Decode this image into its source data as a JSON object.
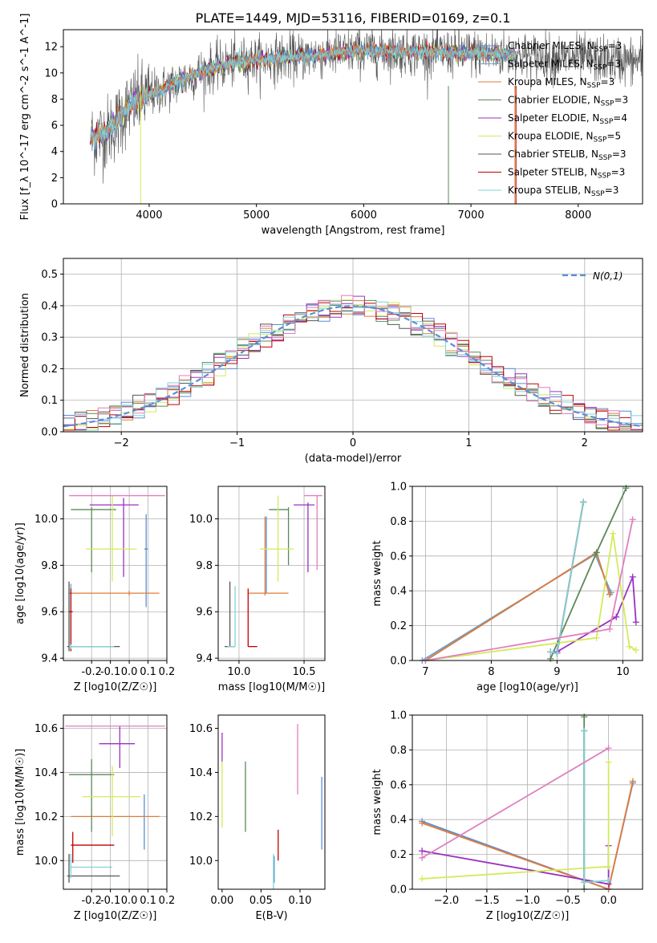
{
  "figure": {
    "title": "PLATE=1449, MJD=53116, FIBERID=0169, z=0.1"
  },
  "models": [
    {
      "name": "Chabrier MILES",
      "nssp": "3",
      "color": "#5b8ed6"
    },
    {
      "name": "Salpeter MILES",
      "nssp": "3",
      "color": "#6aa0d0"
    },
    {
      "name": "Kroupa MILES",
      "nssp": "3",
      "color": "#e07b39"
    },
    {
      "name": "Chabrier ELODIE",
      "nssp": "3",
      "color": "#5a8a5a"
    },
    {
      "name": "Salpeter ELODIE",
      "nssp": "4",
      "color": "#9b30c0"
    },
    {
      "name": "Kroupa ELODIE",
      "nssp": "5",
      "color": "#d4ea5a"
    },
    {
      "name": "Chabrier STELIB",
      "nssp": "3",
      "color": "#555555"
    },
    {
      "name": "Salpeter STELIB",
      "nssp": "3",
      "color": "#c00000"
    },
    {
      "name": "Kroupa STELIB",
      "nssp": "3",
      "color": "#7fd4d8"
    }
  ],
  "chart_data": [
    {
      "id": "spectrum",
      "type": "line",
      "xlabel": "wavelength [Angstrom, rest frame]",
      "ylabel": "Flux [f_λ 10^-17 erg cm^-2 s^-1 A^-1]",
      "xlim": [
        3200,
        8600
      ],
      "ylim": [
        0,
        13.3
      ],
      "xticks": [
        4000,
        5000,
        6000,
        7000,
        8000
      ],
      "yticks": [
        0,
        2,
        4,
        6,
        8,
        10,
        12
      ],
      "legend_position": "right",
      "continuum": {
        "x": [
          3450,
          3600,
          3700,
          3800,
          3900,
          4000,
          4200,
          4400,
          4600,
          4800,
          5000,
          5500,
          6000,
          6500,
          7000,
          7400,
          7500,
          8000,
          8500
        ],
        "y": [
          5.0,
          5.4,
          6.2,
          7.3,
          7.9,
          8.3,
          9.0,
          9.8,
          10.4,
          10.8,
          11.0,
          11.3,
          11.7,
          11.6,
          11.5,
          11.4,
          11.3,
          11.1,
          10.9
        ]
      }
    },
    {
      "id": "residuals",
      "type": "histogram",
      "xlabel": "(data-model)/error",
      "ylabel": "Normed distribution",
      "xlim": [
        -2.5,
        2.5
      ],
      "ylim": [
        0,
        0.55
      ],
      "xticks": [
        -2,
        -1,
        0,
        1,
        2
      ],
      "yticks": [
        0.0,
        0.1,
        0.2,
        0.3,
        0.4,
        0.5
      ],
      "grid": true,
      "legend_position": "top-right",
      "reference": {
        "label": "N(0,1)",
        "mean": 0,
        "sigma": 1
      }
    },
    {
      "id": "age_vs_z",
      "type": "errorbar",
      "xlabel": "Z [log10(Z/Z☉)]",
      "ylabel": "age [log10(age/yr)]",
      "xlim": [
        -0.35,
        0.2
      ],
      "ylim": [
        9.39,
        10.14
      ],
      "xticks": [
        -0.2,
        -0.1,
        0.0,
        0.1,
        0.2
      ],
      "yticks": [
        9.4,
        9.6,
        9.8,
        10.0
      ],
      "grid": true,
      "points": [
        {
          "m": 0,
          "x": 0.09,
          "y": 9.87,
          "xerr": [
            0.01,
            0.01
          ],
          "yerr": [
            0.25,
            0.15
          ]
        },
        {
          "m": 1,
          "x": -0.31,
          "y": 9.68,
          "xerr": [
            0.01,
            0.01
          ],
          "yerr": [
            0.23,
            0.04
          ]
        },
        {
          "m": 2,
          "x": 0.0,
          "y": 9.68,
          "xerr": [
            0.31,
            0.16
          ],
          "yerr": [
            0.01,
            0.01
          ]
        },
        {
          "m": 3,
          "x": -0.2,
          "y": 10.04,
          "xerr": [
            0.11,
            0.13
          ],
          "yerr": [
            0.27,
            0.01
          ]
        },
        {
          "m": 4,
          "x": -0.03,
          "y": 10.06,
          "xerr": [
            0.18,
            0.08
          ],
          "yerr": [
            0.31,
            0.03
          ]
        },
        {
          "m": 5,
          "x": -0.09,
          "y": 9.87,
          "xerr": [
            0.14,
            0.13
          ],
          "yerr": [
            0.14,
            0.23
          ]
        },
        {
          "m": 6,
          "x": -0.32,
          "y": 9.45,
          "xerr": [
            0.01,
            0.27
          ],
          "yerr": [
            0.02,
            0.28
          ]
        },
        {
          "m": 7,
          "x": -0.31,
          "y": 9.6,
          "xerr": [
            0.01,
            0.01
          ],
          "yerr": [
            0.17,
            0.1
          ]
        },
        {
          "m": 8,
          "x": -0.31,
          "y": 9.45,
          "xerr": [
            0.01,
            0.23
          ],
          "yerr": [
            0.01,
            0.01
          ]
        },
        {
          "m": 9,
          "x": -0.05,
          "y": 10.1,
          "xerr": [
            0.27,
            0.24
          ],
          "yerr": [
            0.0,
            0.0
          ]
        }
      ]
    },
    {
      "id": "age_vs_mass",
      "type": "errorbar",
      "xlabel": "mass [log10(M/M☉)]",
      "ylabel": "",
      "xlim": [
        9.84,
        10.66
      ],
      "ylim": [
        9.39,
        10.14
      ],
      "xticks": [
        10.0,
        10.5
      ],
      "yticks": [
        9.4,
        9.6,
        9.8,
        10.0
      ],
      "grid": true,
      "points": [
        {
          "m": 0,
          "x": 10.21,
          "y": 9.68,
          "xerr": [
            0.0,
            0.0
          ],
          "yerr": [
            0.0,
            0.33
          ]
        },
        {
          "m": 2,
          "x": 10.2,
          "y": 9.68,
          "xerr": [
            0.13,
            0.18
          ],
          "yerr": [
            0.01,
            0.33
          ]
        },
        {
          "m": 3,
          "x": 10.38,
          "y": 10.04,
          "xerr": [
            0.15,
            0.0
          ],
          "yerr": [
            0.24,
            0.01
          ]
        },
        {
          "m": 4,
          "x": 10.53,
          "y": 10.06,
          "xerr": [
            0.11,
            0.05
          ],
          "yerr": [
            0.29,
            0.01
          ]
        },
        {
          "m": 5,
          "x": 10.3,
          "y": 9.87,
          "xerr": [
            0.14,
            0.12
          ],
          "yerr": [
            0.14,
            0.23
          ]
        },
        {
          "m": 6,
          "x": 9.93,
          "y": 9.45,
          "xerr": [
            0.04,
            0.04
          ],
          "yerr": [
            0.0,
            0.28
          ]
        },
        {
          "m": 7,
          "x": 10.07,
          "y": 9.45,
          "xerr": [
            0.0,
            0.07
          ],
          "yerr": [
            0.0,
            0.25
          ]
        },
        {
          "m": 8,
          "x": 9.97,
          "y": 9.45,
          "xerr": [
            0.06,
            0.0
          ],
          "yerr": [
            0.0,
            0.26
          ]
        },
        {
          "m": 9,
          "x": 10.6,
          "y": 10.1,
          "xerr": [
            0.1,
            0.04
          ],
          "yerr": [
            0.32,
            0.0
          ]
        }
      ]
    },
    {
      "id": "weight_vs_age",
      "type": "line",
      "xlabel": "age [log10(age/yr)]",
      "ylabel": "mass weight",
      "xlim": [
        6.8,
        10.3
      ],
      "ylim": [
        0,
        1.0
      ],
      "xticks": [
        7,
        8,
        9,
        10
      ],
      "yticks": [
        0.0,
        0.2,
        0.4,
        0.6,
        0.8,
        1.0
      ],
      "grid": true,
      "series": [
        {
          "m": 0,
          "x": [
            7.0,
            9.6,
            9.8
          ],
          "y": [
            0.0,
            0.62,
            0.38
          ]
        },
        {
          "m": 1,
          "x": [
            6.95,
            9.58,
            9.82
          ],
          "y": [
            0.0,
            0.61,
            0.39
          ]
        },
        {
          "m": 2,
          "x": [
            7.0,
            9.6,
            9.8
          ],
          "y": [
            0.0,
            0.62,
            0.38
          ]
        },
        {
          "m": 3,
          "x": [
            8.9,
            9.6,
            10.05
          ],
          "y": [
            0.01,
            0.62,
            0.99
          ]
        },
        {
          "m": 4,
          "x": [
            9.0,
            9.9,
            10.15,
            10.2
          ],
          "y": [
            0.05,
            0.25,
            0.48,
            0.22
          ]
        },
        {
          "m": 5,
          "x": [
            7.0,
            9.6,
            9.85,
            10.1,
            10.2
          ],
          "y": [
            0.0,
            0.13,
            0.73,
            0.08,
            0.06
          ]
        },
        {
          "m": 6,
          "x": [
            8.9,
            9.0,
            9.4
          ],
          "y": [
            0.05,
            0.04,
            0.91
          ]
        },
        {
          "m": 7,
          "x": [
            8.9,
            9.0,
            9.4
          ],
          "y": [
            0.05,
            0.04,
            0.91
          ]
        },
        {
          "m": 8,
          "x": [
            8.9,
            9.0,
            9.4
          ],
          "y": [
            0.05,
            0.04,
            0.91
          ]
        },
        {
          "m": 9,
          "x": [
            7.0,
            9.8,
            10.15
          ],
          "y": [
            0.0,
            0.18,
            0.81
          ]
        }
      ]
    },
    {
      "id": "mass_vs_z",
      "type": "errorbar",
      "xlabel": "Z [log10(Z/Z☉)]",
      "ylabel": "mass [log10(M/M☉)]",
      "xlim": [
        -0.35,
        0.2
      ],
      "ylim": [
        9.87,
        10.66
      ],
      "xticks": [
        -0.2,
        -0.1,
        0.0,
        0.1,
        0.2
      ],
      "yticks": [
        10.0,
        10.2,
        10.4,
        10.6
      ],
      "grid": true,
      "points": [
        {
          "m": 0,
          "x": 0.08,
          "y": 10.2,
          "xerr": [
            0.0,
            0.0
          ],
          "yerr": [
            0.15,
            0.1
          ]
        },
        {
          "m": 2,
          "x": 0.0,
          "y": 10.2,
          "xerr": [
            0.31,
            0.16
          ],
          "yerr": [
            0.0,
            0.0
          ]
        },
        {
          "m": 3,
          "x": -0.2,
          "y": 10.39,
          "xerr": [
            0.12,
            0.12
          ],
          "yerr": [
            0.26,
            0.07
          ]
        },
        {
          "m": 4,
          "x": -0.05,
          "y": 10.53,
          "xerr": [
            0.11,
            0.08
          ],
          "yerr": [
            0.11,
            0.08
          ]
        },
        {
          "m": 5,
          "x": -0.09,
          "y": 10.29,
          "xerr": [
            0.16,
            0.15
          ],
          "yerr": [
            0.18,
            0.14
          ]
        },
        {
          "m": 6,
          "x": -0.32,
          "y": 9.93,
          "xerr": [
            0.01,
            0.27
          ],
          "yerr": [
            0.03,
            0.1
          ]
        },
        {
          "m": 7,
          "x": -0.3,
          "y": 10.07,
          "xerr": [
            0.01,
            0.22
          ],
          "yerr": [
            0.08,
            0.06
          ]
        },
        {
          "m": 8,
          "x": -0.31,
          "y": 9.97,
          "xerr": [
            0.01,
            0.22
          ],
          "yerr": [
            0.05,
            0.06
          ]
        },
        {
          "m": 9,
          "x": -0.05,
          "y": 10.61,
          "xerr": [
            0.29,
            0.24
          ],
          "yerr": [
            0.0,
            0.0
          ]
        }
      ]
    },
    {
      "id": "mass_vs_ebv",
      "type": "errorbar",
      "xlabel": "E(B-V)",
      "ylabel": "",
      "xlim": [
        -0.005,
        0.132
      ],
      "ylim": [
        9.87,
        10.66
      ],
      "xticks": [
        0.0,
        0.05,
        0.1
      ],
      "yticks": [
        10.0,
        10.2,
        10.4,
        10.6
      ],
      "grid": false,
      "points": [
        {
          "m": 0,
          "x": 0.128,
          "y": 10.2,
          "xerr": [
            0,
            0
          ],
          "yerr": [
            0.15,
            0.18
          ]
        },
        {
          "m": 3,
          "x": 0.03,
          "y": 10.29,
          "xerr": [
            0,
            0
          ],
          "yerr": [
            0.16,
            0.16
          ]
        },
        {
          "m": 4,
          "x": 0.0,
          "y": 10.51,
          "xerr": [
            0,
            0
          ],
          "yerr": [
            0.07,
            0.07
          ]
        },
        {
          "m": 5,
          "x": 0.0,
          "y": 10.3,
          "xerr": [
            0,
            0
          ],
          "yerr": [
            0.15,
            0.15
          ]
        },
        {
          "m": 7,
          "x": 0.072,
          "y": 10.07,
          "xerr": [
            0,
            0
          ],
          "yerr": [
            0.07,
            0.07
          ]
        },
        {
          "m": 8,
          "x": 0.066,
          "y": 9.95,
          "xerr": [
            0,
            0
          ],
          "yerr": [
            0.08,
            0.08
          ]
        },
        {
          "m": 1,
          "x": 0.067,
          "y": 9.96,
          "xerr": [
            0,
            0
          ],
          "yerr": [
            0.06,
            0.06
          ]
        },
        {
          "m": 9,
          "x": 0.097,
          "y": 10.46,
          "xerr": [
            0,
            0
          ],
          "yerr": [
            0.16,
            0.16
          ]
        }
      ]
    },
    {
      "id": "weight_vs_z",
      "type": "line",
      "xlabel": "Z [log10(Z/Z☉)]",
      "ylabel": "mass weight",
      "xlim": [
        -2.42,
        0.42
      ],
      "ylim": [
        0,
        1.0
      ],
      "xticks": [
        -2.0,
        -1.5,
        -1.0,
        -0.5,
        0.0
      ],
      "yticks": [
        0.0,
        0.2,
        0.4,
        0.6,
        0.8,
        1.0
      ],
      "grid": true,
      "series": [
        {
          "m": 0,
          "x": [
            -2.3,
            0.0,
            0.3
          ],
          "y": [
            0.39,
            0.0,
            0.61
          ]
        },
        {
          "m": 2,
          "x": [
            -2.3,
            0.0,
            0.3
          ],
          "y": [
            0.38,
            0.0,
            0.62
          ]
        },
        {
          "m": 3,
          "x": [
            -0.3,
            -0.3
          ],
          "y": [
            0.0,
            0.99
          ]
        },
        {
          "m": 4,
          "x": [
            -2.3,
            0.0,
            0.0
          ],
          "y": [
            0.22,
            0.03,
            0.25
          ]
        },
        {
          "m": 5,
          "x": [
            -2.3,
            0.0,
            0.0
          ],
          "y": [
            0.06,
            0.13,
            0.73
          ]
        },
        {
          "m": 6,
          "x": [
            -0.3,
            -0.3
          ],
          "y": [
            0.04,
            0.91
          ]
        },
        {
          "m": 8,
          "x": [
            -0.3,
            -0.3,
            0.0
          ],
          "y": [
            0.91,
            0.04,
            0.05
          ]
        },
        {
          "m": 9,
          "x": [
            -2.3,
            0.0
          ],
          "y": [
            0.18,
            0.81
          ]
        }
      ]
    }
  ]
}
